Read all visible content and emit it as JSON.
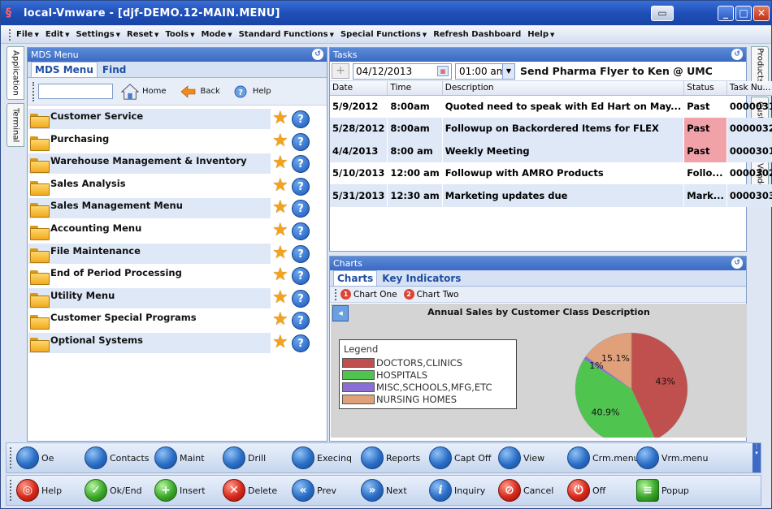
{
  "window": {
    "title": "local-Vmware - [djf-DEMO.12-MAIN.MENU]"
  },
  "menubar": [
    {
      "label": "File"
    },
    {
      "label": "Edit"
    },
    {
      "label": "Settings"
    },
    {
      "label": "Reset"
    },
    {
      "label": "Tools"
    },
    {
      "label": "Mode"
    },
    {
      "label": "Standard Functions"
    },
    {
      "label": "Special Functions"
    },
    {
      "label": "Refresh Dashboard"
    },
    {
      "label": "Help"
    }
  ],
  "left_tabs": [
    "Application",
    "Terminal"
  ],
  "right_tabs": [
    "Products",
    "Customers",
    "Vendors"
  ],
  "mds": {
    "header": "MDS Menu",
    "tabs": [
      "MDS Menu",
      "Find"
    ],
    "search_value": "",
    "toolbar": {
      "home": "Home",
      "back": "Back",
      "help": "Help"
    },
    "items": [
      "Customer Service",
      "Purchasing",
      "Warehouse Management & Inventory",
      "Sales Analysis",
      "Sales Management Menu",
      "Accounting Menu",
      "File Maintenance",
      "End of Period Processing",
      "Utility Menu",
      "Customer Special Programs",
      "Optional Systems"
    ]
  },
  "tasks": {
    "header": "Tasks",
    "date": "04/12/2013",
    "time": "01:00 am",
    "title": "Send Pharma Flyer to Ken @ UMC",
    "columns": [
      "Date",
      "Time",
      "Description",
      "Status",
      "Task Nu..."
    ],
    "rows": [
      {
        "date": "5/9/2012",
        "time": "8:00am",
        "desc": "Quoted need to speak with Ed Hart on May...",
        "status": "Past",
        "num": "0000031",
        "flag": false
      },
      {
        "date": "5/28/2012",
        "time": "8:00am",
        "desc": "Followup on Backordered Items for FLEX",
        "status": "Past",
        "num": "0000032",
        "flag": true
      },
      {
        "date": "4/4/2013",
        "time": "8:00 am",
        "desc": "Weekly  Meeting",
        "status": "Past",
        "num": "0000301",
        "flag": true
      },
      {
        "date": "5/10/2013",
        "time": "12:00 am",
        "desc": "Followup with AMRO Products",
        "status": "Follo...",
        "num": "0000302",
        "flag": false
      },
      {
        "date": "5/31/2013",
        "time": "12:30 am",
        "desc": "Marketing updates due",
        "status": "Mark...",
        "num": "0000303",
        "flag": false
      }
    ]
  },
  "charts": {
    "header": "Charts",
    "tabs": [
      "Charts",
      "Key Indicators"
    ],
    "chart_buttons": [
      "Chart One",
      "Chart Two"
    ],
    "chart_data": {
      "type": "pie",
      "title": "Annual Sales by Customer Class Description",
      "legend_title": "Legend",
      "legend_placement": "left",
      "slices": [
        {
          "name": "DOCTORS,CLINICS",
          "value": 43,
          "label": "43%",
          "color": "#c0504d"
        },
        {
          "name": "HOSPITALS",
          "value": 40.9,
          "label": "40.9%",
          "color": "#4fc44f"
        },
        {
          "name": "MISC,SCHOOLS,MFG,ETC",
          "value": 1,
          "label": "1%",
          "color": "#8a70d6"
        },
        {
          "name": "NURSING HOMES",
          "value": 15.1,
          "label": "15.1%",
          "color": "#e0a07a"
        }
      ]
    }
  },
  "toolbar1": [
    "Oe",
    "Contacts",
    "Maint",
    "Drill",
    "Execinq",
    "Reports",
    "Capt Off",
    "View",
    "Crm.menu",
    "Vrm.menu"
  ],
  "toolbar2": [
    "Help",
    "Ok/End",
    "Insert",
    "Delete",
    "Prev",
    "Next",
    "Inquiry",
    "Cancel",
    "Off",
    "Popup"
  ]
}
